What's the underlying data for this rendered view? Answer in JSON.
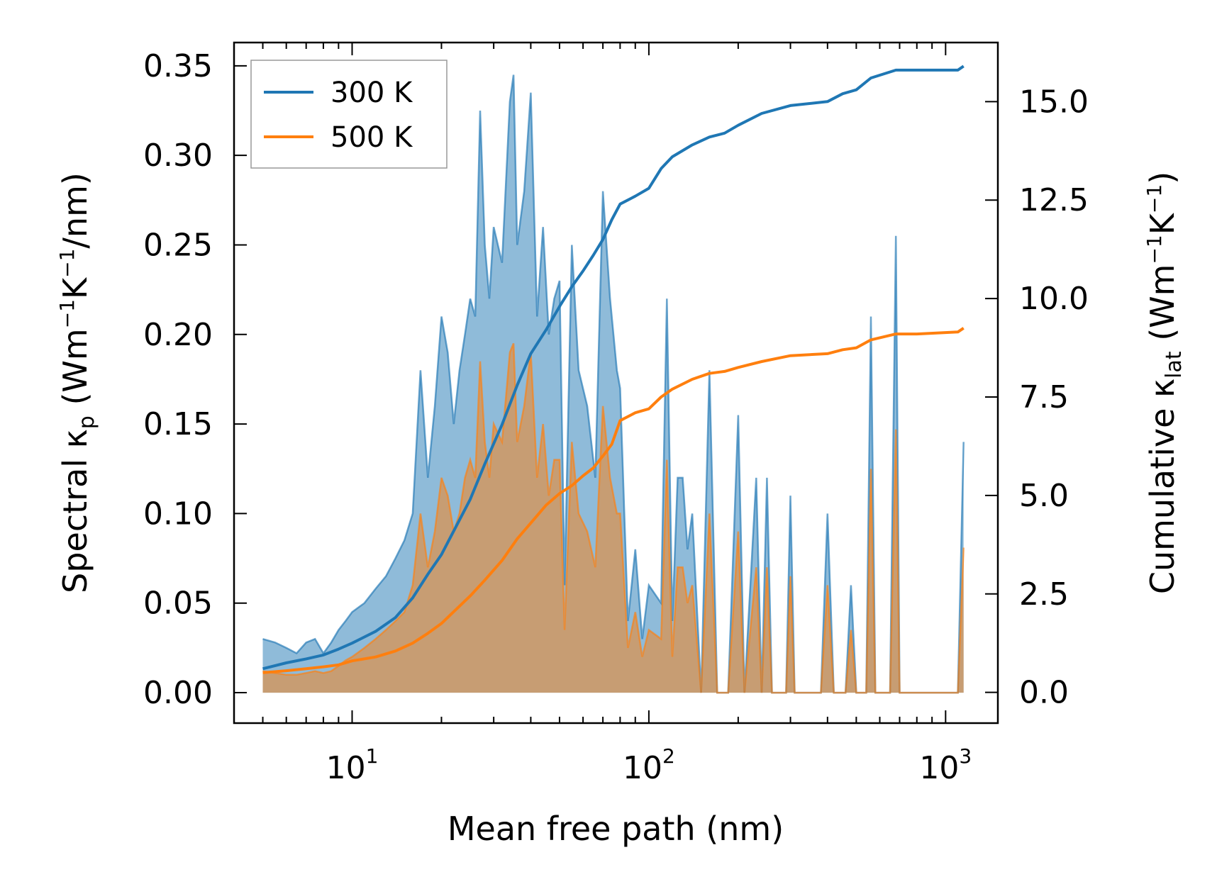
{
  "chart_data": {
    "type": "line",
    "xlabel": "Mean free path (nm)",
    "xscale": "log",
    "xlim": [
      4.0,
      1500
    ],
    "x_ticks": [
      {
        "base": "10",
        "exp": "1"
      },
      {
        "base": "10",
        "exp": "2"
      },
      {
        "base": "10",
        "exp": "3"
      }
    ],
    "ylabel_left": {
      "prefix": "Spectral κ",
      "sub": "p",
      "units_open": " (Wm",
      "sup1": "−1",
      "mid": "K",
      "sup2": "−1",
      "units_close": "/nm)"
    },
    "ylim_left": [
      -0.017,
      0.363
    ],
    "y_ticks_left": [
      "0.00",
      "0.05",
      "0.10",
      "0.15",
      "0.20",
      "0.25",
      "0.30",
      "0.35"
    ],
    "ylabel_right": {
      "prefix": "Cumulative κ",
      "sub": "lat",
      "units_open": " (Wm",
      "sup1": "−1",
      "mid": "K",
      "sup2": "−1",
      "units_close": ")"
    },
    "ylim_right": [
      -0.78,
      16.5
    ],
    "y_ticks_right": [
      "0.0",
      "2.5",
      "5.0",
      "7.5",
      "10.0",
      "12.5",
      "15.0"
    ],
    "legend": {
      "placement": "top-left",
      "entries": [
        "300 K",
        "500 K"
      ]
    },
    "colors": {
      "300 K": "#1f77b4",
      "500 K": "#ff7f0e"
    },
    "spectral_series": [
      {
        "name": "300 K",
        "points": [
          [
            5,
            0.03
          ],
          [
            5.5,
            0.028
          ],
          [
            6,
            0.025
          ],
          [
            6.5,
            0.022
          ],
          [
            7,
            0.028
          ],
          [
            7.5,
            0.03
          ],
          [
            8,
            0.022
          ],
          [
            8.5,
            0.028
          ],
          [
            9,
            0.035
          ],
          [
            9.5,
            0.04
          ],
          [
            10,
            0.045
          ],
          [
            11,
            0.05
          ],
          [
            12,
            0.058
          ],
          [
            13,
            0.065
          ],
          [
            14,
            0.075
          ],
          [
            15,
            0.085
          ],
          [
            16,
            0.1
          ],
          [
            17,
            0.18
          ],
          [
            18,
            0.12
          ],
          [
            19,
            0.16
          ],
          [
            20,
            0.21
          ],
          [
            21,
            0.19
          ],
          [
            22,
            0.15
          ],
          [
            23,
            0.18
          ],
          [
            24,
            0.2
          ],
          [
            25,
            0.22
          ],
          [
            26,
            0.21
          ],
          [
            27,
            0.325
          ],
          [
            28,
            0.25
          ],
          [
            29,
            0.22
          ],
          [
            30,
            0.26
          ],
          [
            32,
            0.24
          ],
          [
            34,
            0.33
          ],
          [
            35,
            0.345
          ],
          [
            36,
            0.25
          ],
          [
            38,
            0.28
          ],
          [
            40,
            0.335
          ],
          [
            42,
            0.21
          ],
          [
            44,
            0.26
          ],
          [
            46,
            0.2
          ],
          [
            48,
            0.22
          ],
          [
            50,
            0.23
          ],
          [
            52,
            0.06
          ],
          [
            55,
            0.25
          ],
          [
            58,
            0.18
          ],
          [
            62,
            0.16
          ],
          [
            66,
            0.12
          ],
          [
            70,
            0.28
          ],
          [
            74,
            0.22
          ],
          [
            78,
            0.18
          ],
          [
            80,
            0.17
          ],
          [
            85,
            0.04
          ],
          [
            90,
            0.08
          ],
          [
            95,
            0.03
          ],
          [
            100,
            0.06
          ],
          [
            110,
            0.05
          ],
          [
            115,
            0.22
          ],
          [
            120,
            0.04
          ],
          [
            125,
            0.12
          ],
          [
            130,
            0.12
          ],
          [
            135,
            0.08
          ],
          [
            140,
            0.1
          ],
          [
            150,
            0.0
          ],
          [
            160,
            0.18
          ],
          [
            170,
            0.0
          ],
          [
            185,
            0.0
          ],
          [
            200,
            0.155
          ],
          [
            210,
            0.0
          ],
          [
            230,
            0.12
          ],
          [
            240,
            0.0
          ],
          [
            250,
            0.12
          ],
          [
            260,
            0.0
          ],
          [
            290,
            0.0
          ],
          [
            300,
            0.11
          ],
          [
            310,
            0.0
          ],
          [
            380,
            0.0
          ],
          [
            400,
            0.1
          ],
          [
            420,
            0.0
          ],
          [
            460,
            0.0
          ],
          [
            480,
            0.06
          ],
          [
            500,
            0.0
          ],
          [
            540,
            0.0
          ],
          [
            560,
            0.21
          ],
          [
            580,
            0.0
          ],
          [
            650,
            0.0
          ],
          [
            680,
            0.255
          ],
          [
            700,
            0.0
          ],
          [
            1100,
            0.0
          ],
          [
            1150,
            0.14
          ]
        ]
      },
      {
        "name": "500 K",
        "points": [
          [
            5,
            0.012
          ],
          [
            5.5,
            0.011
          ],
          [
            6,
            0.01
          ],
          [
            6.5,
            0.01
          ],
          [
            7,
            0.011
          ],
          [
            7.5,
            0.012
          ],
          [
            8,
            0.011
          ],
          [
            8.5,
            0.012
          ],
          [
            9,
            0.015
          ],
          [
            9.5,
            0.018
          ],
          [
            10,
            0.02
          ],
          [
            11,
            0.025
          ],
          [
            12,
            0.03
          ],
          [
            13,
            0.035
          ],
          [
            14,
            0.04
          ],
          [
            15,
            0.045
          ],
          [
            16,
            0.06
          ],
          [
            17,
            0.1
          ],
          [
            18,
            0.07
          ],
          [
            19,
            0.09
          ],
          [
            20,
            0.12
          ],
          [
            21,
            0.11
          ],
          [
            22,
            0.09
          ],
          [
            23,
            0.1
          ],
          [
            24,
            0.12
          ],
          [
            25,
            0.13
          ],
          [
            26,
            0.12
          ],
          [
            27,
            0.185
          ],
          [
            28,
            0.14
          ],
          [
            29,
            0.12
          ],
          [
            30,
            0.15
          ],
          [
            32,
            0.14
          ],
          [
            34,
            0.19
          ],
          [
            35,
            0.195
          ],
          [
            36,
            0.14
          ],
          [
            38,
            0.16
          ],
          [
            40,
            0.19
          ],
          [
            42,
            0.12
          ],
          [
            44,
            0.15
          ],
          [
            46,
            0.11
          ],
          [
            48,
            0.13
          ],
          [
            50,
            0.13
          ],
          [
            52,
            0.035
          ],
          [
            55,
            0.14
          ],
          [
            58,
            0.1
          ],
          [
            62,
            0.09
          ],
          [
            66,
            0.07
          ],
          [
            70,
            0.16
          ],
          [
            74,
            0.12
          ],
          [
            78,
            0.1
          ],
          [
            80,
            0.1
          ],
          [
            85,
            0.025
          ],
          [
            90,
            0.045
          ],
          [
            95,
            0.02
          ],
          [
            100,
            0.035
          ],
          [
            110,
            0.03
          ],
          [
            115,
            0.13
          ],
          [
            120,
            0.02
          ],
          [
            125,
            0.07
          ],
          [
            130,
            0.07
          ],
          [
            135,
            0.05
          ],
          [
            140,
            0.06
          ],
          [
            150,
            0.0
          ],
          [
            160,
            0.1
          ],
          [
            170,
            0.0
          ],
          [
            185,
            0.0
          ],
          [
            200,
            0.09
          ],
          [
            210,
            0.0
          ],
          [
            230,
            0.07
          ],
          [
            240,
            0.0
          ],
          [
            250,
            0.07
          ],
          [
            260,
            0.0
          ],
          [
            290,
            0.0
          ],
          [
            300,
            0.065
          ],
          [
            310,
            0.0
          ],
          [
            380,
            0.0
          ],
          [
            400,
            0.06
          ],
          [
            420,
            0.0
          ],
          [
            460,
            0.0
          ],
          [
            480,
            0.035
          ],
          [
            500,
            0.0
          ],
          [
            540,
            0.0
          ],
          [
            560,
            0.125
          ],
          [
            580,
            0.0
          ],
          [
            650,
            0.0
          ],
          [
            680,
            0.147
          ],
          [
            700,
            0.0
          ],
          [
            1100,
            0.0
          ],
          [
            1150,
            0.081
          ]
        ]
      }
    ],
    "cumulative_series": [
      {
        "name": "300 K",
        "points": [
          [
            5,
            0.6
          ],
          [
            6,
            0.75
          ],
          [
            7,
            0.85
          ],
          [
            8,
            0.95
          ],
          [
            9,
            1.1
          ],
          [
            10,
            1.25
          ],
          [
            12,
            1.55
          ],
          [
            14,
            1.9
          ],
          [
            16,
            2.4
          ],
          [
            18,
            3.0
          ],
          [
            20,
            3.5
          ],
          [
            22,
            4.1
          ],
          [
            25,
            4.9
          ],
          [
            28,
            5.8
          ],
          [
            32,
            6.8
          ],
          [
            36,
            7.8
          ],
          [
            40,
            8.6
          ],
          [
            45,
            9.2
          ],
          [
            50,
            9.8
          ],
          [
            55,
            10.3
          ],
          [
            60,
            10.7
          ],
          [
            65,
            11.1
          ],
          [
            70,
            11.5
          ],
          [
            75,
            12.0
          ],
          [
            80,
            12.4
          ],
          [
            90,
            12.6
          ],
          [
            100,
            12.8
          ],
          [
            110,
            13.3
          ],
          [
            120,
            13.6
          ],
          [
            140,
            13.9
          ],
          [
            160,
            14.1
          ],
          [
            180,
            14.2
          ],
          [
            200,
            14.4
          ],
          [
            240,
            14.7
          ],
          [
            300,
            14.9
          ],
          [
            400,
            15.0
          ],
          [
            450,
            15.2
          ],
          [
            500,
            15.3
          ],
          [
            560,
            15.6
          ],
          [
            680,
            15.8
          ],
          [
            800,
            15.8
          ],
          [
            1100,
            15.8
          ],
          [
            1150,
            15.9
          ]
        ]
      },
      {
        "name": "500 K",
        "points": [
          [
            5,
            0.5
          ],
          [
            6,
            0.55
          ],
          [
            7,
            0.6
          ],
          [
            8,
            0.65
          ],
          [
            9,
            0.7
          ],
          [
            10,
            0.8
          ],
          [
            12,
            0.9
          ],
          [
            14,
            1.05
          ],
          [
            16,
            1.25
          ],
          [
            18,
            1.5
          ],
          [
            20,
            1.75
          ],
          [
            22,
            2.05
          ],
          [
            25,
            2.45
          ],
          [
            28,
            2.85
          ],
          [
            32,
            3.35
          ],
          [
            36,
            3.9
          ],
          [
            40,
            4.3
          ],
          [
            45,
            4.75
          ],
          [
            50,
            5.05
          ],
          [
            55,
            5.25
          ],
          [
            60,
            5.5
          ],
          [
            65,
            5.7
          ],
          [
            70,
            6.0
          ],
          [
            75,
            6.3
          ],
          [
            80,
            6.9
          ],
          [
            90,
            7.1
          ],
          [
            100,
            7.2
          ],
          [
            110,
            7.5
          ],
          [
            120,
            7.7
          ],
          [
            140,
            7.95
          ],
          [
            160,
            8.1
          ],
          [
            180,
            8.15
          ],
          [
            200,
            8.25
          ],
          [
            240,
            8.4
          ],
          [
            300,
            8.55
          ],
          [
            400,
            8.6
          ],
          [
            450,
            8.7
          ],
          [
            500,
            8.75
          ],
          [
            560,
            8.95
          ],
          [
            680,
            9.1
          ],
          [
            800,
            9.1
          ],
          [
            1100,
            9.15
          ],
          [
            1150,
            9.25
          ]
        ]
      }
    ]
  }
}
